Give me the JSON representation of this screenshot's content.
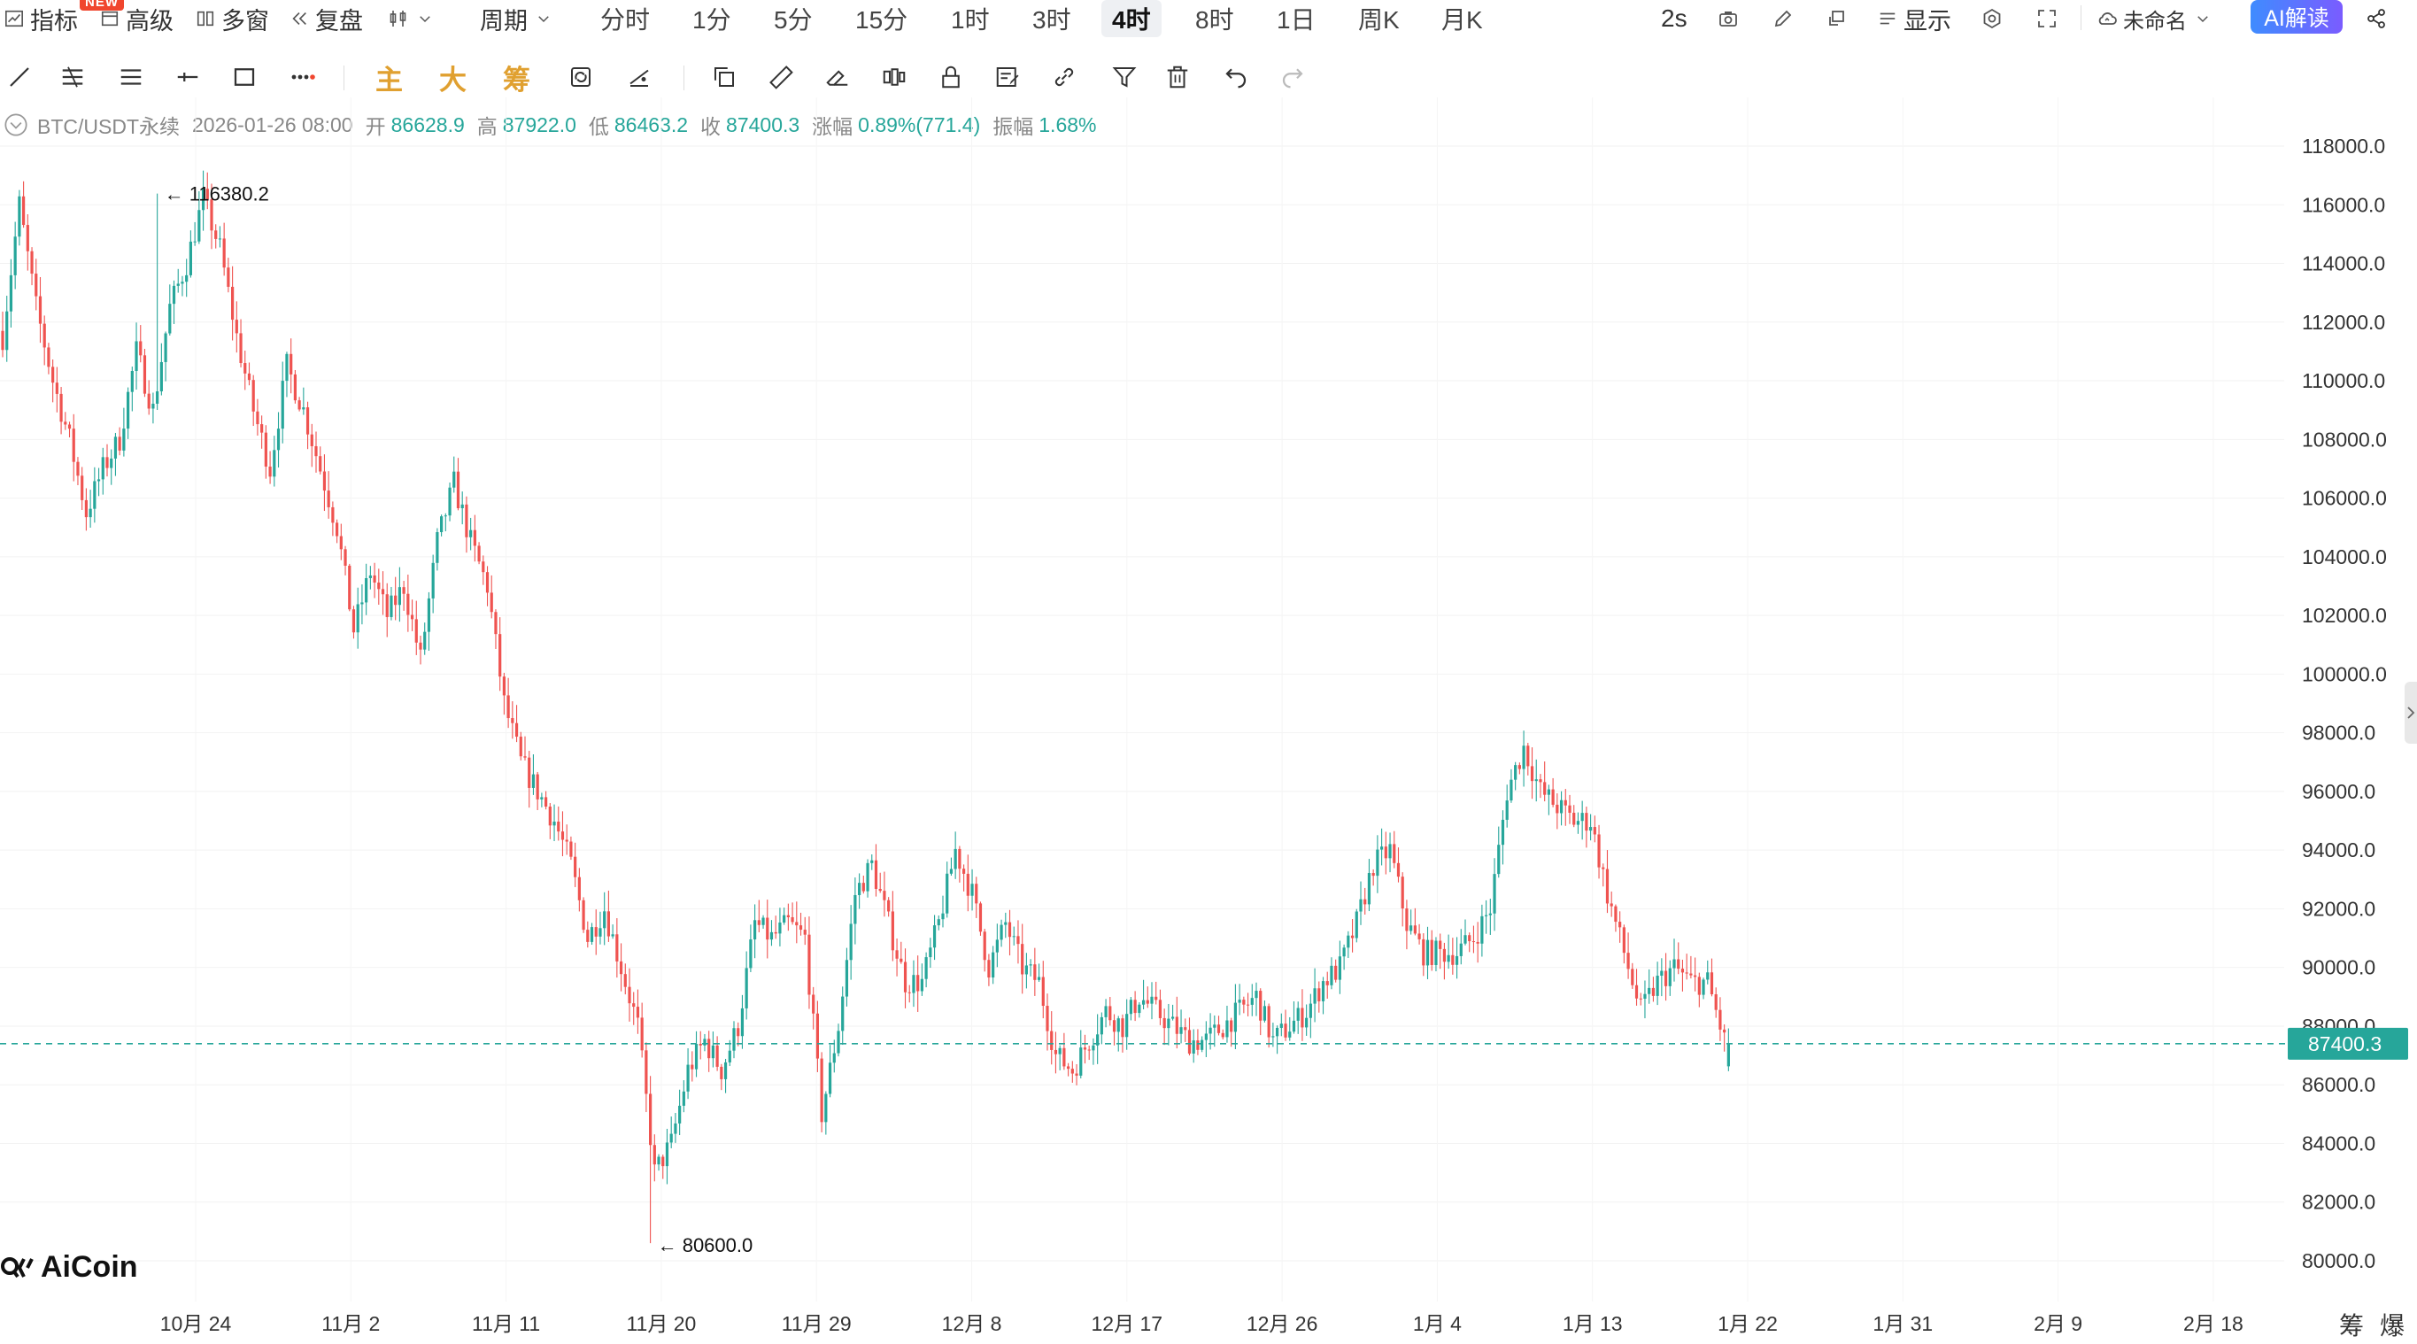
{
  "toolbar": {
    "indicators": "指标",
    "new_badge": "NEW",
    "advanced": "高级",
    "multi_window": "多窗",
    "replay": "复盘",
    "period": "周期",
    "periods": [
      {
        "label": "分时",
        "active": false
      },
      {
        "label": "1分",
        "active": false
      },
      {
        "label": "5分",
        "active": false
      },
      {
        "label": "15分",
        "active": false
      },
      {
        "label": "1时",
        "active": false
      },
      {
        "label": "3时",
        "active": false
      },
      {
        "label": "4时",
        "active": true
      },
      {
        "label": "8时",
        "active": false
      },
      {
        "label": "1日",
        "active": false
      },
      {
        "label": "周K",
        "active": false
      },
      {
        "label": "月K",
        "active": false
      }
    ],
    "refresh_interval": "2s",
    "display": "显示",
    "layout_name": "未命名",
    "ai_button": "AI解读"
  },
  "drawbar": {
    "main": "主",
    "large": "大",
    "chip": "筹"
  },
  "ohlc": {
    "symbol": "BTC/USDT永续",
    "datetime": "2026-01-26 08:00",
    "open_label": "开",
    "open": "86628.9",
    "high_label": "高",
    "high": "87922.0",
    "low_label": "低",
    "low": "86463.2",
    "close_label": "收",
    "close": "87400.3",
    "change_label": "涨幅",
    "change": "0.89%(771.4)",
    "amplitude_label": "振幅",
    "amplitude": "1.68%"
  },
  "chart_data": {
    "type": "candlestick",
    "y_ticks": [
      "80000.0",
      "82000.0",
      "84000.0",
      "86000.0",
      "88000.0",
      "90000.0",
      "92000.0",
      "94000.0",
      "96000.0",
      "98000.0",
      "100000.0",
      "102000.0",
      "104000.0",
      "106000.0",
      "108000.0",
      "110000.0",
      "112000.0",
      "114000.0",
      "116000.0",
      "118000.0"
    ],
    "x_ticks": [
      "10月 24",
      "11月 2",
      "11月 11",
      "11月 20",
      "11月 29",
      "12月 8",
      "12月 17",
      "12月 26",
      "1月 4",
      "1月 13",
      "1月 22",
      "1月 31",
      "2月 9",
      "2月 18"
    ],
    "ylim": [
      79000,
      119000
    ],
    "current_price": "87400.3",
    "high_marker": "116380.2",
    "low_marker": "80600.0",
    "up_color": "#26a69a",
    "down_color": "#ef5350",
    "trend_anchors": [
      [
        0,
        111500
      ],
      [
        4,
        116000
      ],
      [
        8,
        112500
      ],
      [
        12,
        110000
      ],
      [
        16,
        108000
      ],
      [
        20,
        105500
      ],
      [
        24,
        107000
      ],
      [
        28,
        108000
      ],
      [
        32,
        111000
      ],
      [
        36,
        109000
      ],
      [
        40,
        112500
      ],
      [
        44,
        114000
      ],
      [
        48,
        116200
      ],
      [
        52,
        114500
      ],
      [
        56,
        111500
      ],
      [
        60,
        109000
      ],
      [
        64,
        107000
      ],
      [
        68,
        110500
      ],
      [
        72,
        109000
      ],
      [
        76,
        107000
      ],
      [
        80,
        105000
      ],
      [
        84,
        101500
      ],
      [
        88,
        103500
      ],
      [
        92,
        102000
      ],
      [
        96,
        103000
      ],
      [
        100,
        100500
      ],
      [
        104,
        104500
      ],
      [
        108,
        106500
      ],
      [
        112,
        104500
      ],
      [
        116,
        103000
      ],
      [
        120,
        99000
      ],
      [
        124,
        97000
      ],
      [
        128,
        96000
      ],
      [
        132,
        95000
      ],
      [
        136,
        93500
      ],
      [
        140,
        91000
      ],
      [
        144,
        92000
      ],
      [
        148,
        90000
      ],
      [
        152,
        88000
      ],
      [
        156,
        83000
      ],
      [
        160,
        84000
      ],
      [
        164,
        86500
      ],
      [
        168,
        87500
      ],
      [
        172,
        86500
      ],
      [
        176,
        88000
      ],
      [
        180,
        91500
      ],
      [
        184,
        91000
      ],
      [
        188,
        91500
      ],
      [
        192,
        91000
      ],
      [
        196,
        85000
      ],
      [
        200,
        88000
      ],
      [
        204,
        92500
      ],
      [
        208,
        93500
      ],
      [
        212,
        91500
      ],
      [
        216,
        89500
      ],
      [
        220,
        89500
      ],
      [
        224,
        91500
      ],
      [
        228,
        94000
      ],
      [
        232,
        92500
      ],
      [
        236,
        90000
      ],
      [
        240,
        91500
      ],
      [
        244,
        90000
      ],
      [
        248,
        89500
      ],
      [
        252,
        87000
      ],
      [
        256,
        86500
      ],
      [
        260,
        87500
      ],
      [
        264,
        88500
      ],
      [
        268,
        88000
      ],
      [
        272,
        89000
      ],
      [
        276,
        88500
      ],
      [
        280,
        88000
      ],
      [
        284,
        87500
      ],
      [
        288,
        87500
      ],
      [
        292,
        88000
      ],
      [
        296,
        88500
      ],
      [
        300,
        89000
      ],
      [
        304,
        87500
      ],
      [
        308,
        88000
      ],
      [
        312,
        88500
      ],
      [
        316,
        89500
      ],
      [
        320,
        90000
      ],
      [
        324,
        91500
      ],
      [
        328,
        93500
      ],
      [
        332,
        94000
      ],
      [
        336,
        91500
      ],
      [
        340,
        90500
      ],
      [
        344,
        90500
      ],
      [
        348,
        90500
      ],
      [
        352,
        91000
      ],
      [
        356,
        92000
      ],
      [
        360,
        96000
      ],
      [
        364,
        97500
      ],
      [
        368,
        96000
      ],
      [
        372,
        95500
      ],
      [
        376,
        95000
      ],
      [
        380,
        95000
      ],
      [
        384,
        92500
      ],
      [
        388,
        90500
      ],
      [
        392,
        88500
      ],
      [
        396,
        89500
      ],
      [
        400,
        90000
      ],
      [
        404,
        89500
      ],
      [
        408,
        89500
      ],
      [
        412,
        87500
      ],
      [
        413,
        87400
      ]
    ]
  },
  "footer": {
    "chip_short": "筹",
    "liq_short": "爆",
    "logo_text": "AiCoin"
  }
}
